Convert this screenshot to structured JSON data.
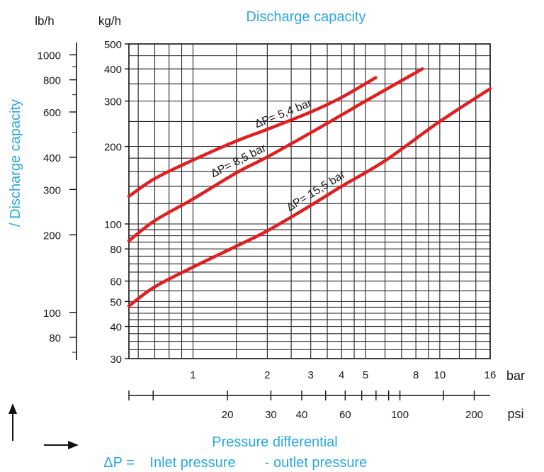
{
  "chart_data": {
    "type": "line",
    "title": "Discharge capacity",
    "ylabel": "/ Discharge capacity",
    "xlabel": "Pressure differential",
    "formula": {
      "lhs": "ΔP =",
      "rhs_inlet": "Inlet pressure",
      "rhs_outlet": "- outlet pressure"
    },
    "x_scale": "log",
    "y_scale": "log",
    "xlim": [
      0.55,
      16
    ],
    "ylim": [
      30,
      500
    ],
    "x_unit_bar": "bar",
    "x_unit_psi": "psi",
    "y_unit_kg": "kg/h",
    "y_unit_lb": "lb/h",
    "x_ticks_bar": [
      "1",
      "2",
      "3",
      "4",
      "5",
      "8",
      "10",
      "16"
    ],
    "x_tick_values_bar": [
      1,
      2,
      3,
      4,
      5,
      8,
      10,
      16
    ],
    "x_ticks_psi": [
      "20",
      "30",
      "40",
      "60",
      "100",
      "200"
    ],
    "x_tick_values_psi": [
      20,
      30,
      40,
      60,
      100,
      200
    ],
    "y_ticks_kg": [
      "500",
      "400",
      "300",
      "200",
      "100",
      "80",
      "60",
      "50",
      "40",
      "30"
    ],
    "y_tick_values_kg": [
      500,
      400,
      300,
      200,
      100,
      80,
      60,
      50,
      40,
      30
    ],
    "y_ticks_lb": [
      "1000",
      "800",
      "600",
      "400",
      "300",
      "200",
      "100",
      "80"
    ],
    "y_tick_values_lb": [
      1000,
      800,
      600,
      400,
      300,
      200,
      100,
      80
    ],
    "grid": true,
    "series": [
      {
        "name": "ΔP= 5,4 bar",
        "color": "#e02020",
        "x": [
          0.55,
          0.7,
          1,
          1.5,
          2,
          3,
          4,
          5.5
        ],
        "y": [
          128,
          150,
          177,
          210,
          233,
          272,
          310,
          370
        ]
      },
      {
        "name": "ΔP= 8,5 bar",
        "color": "#e02020",
        "x": [
          0.55,
          0.7,
          1,
          1.5,
          2,
          3,
          4,
          5,
          8.5
        ],
        "y": [
          86,
          103,
          125,
          158,
          182,
          226,
          265,
          300,
          400
        ]
      },
      {
        "name": "ΔP= 15,5 bar",
        "color": "#e02020",
        "x": [
          0.55,
          0.7,
          1,
          1.5,
          2,
          3,
          4,
          6,
          10,
          16
        ],
        "y": [
          48,
          57,
          68,
          82,
          94,
          118,
          140,
          176,
          250,
          335
        ]
      }
    ]
  }
}
